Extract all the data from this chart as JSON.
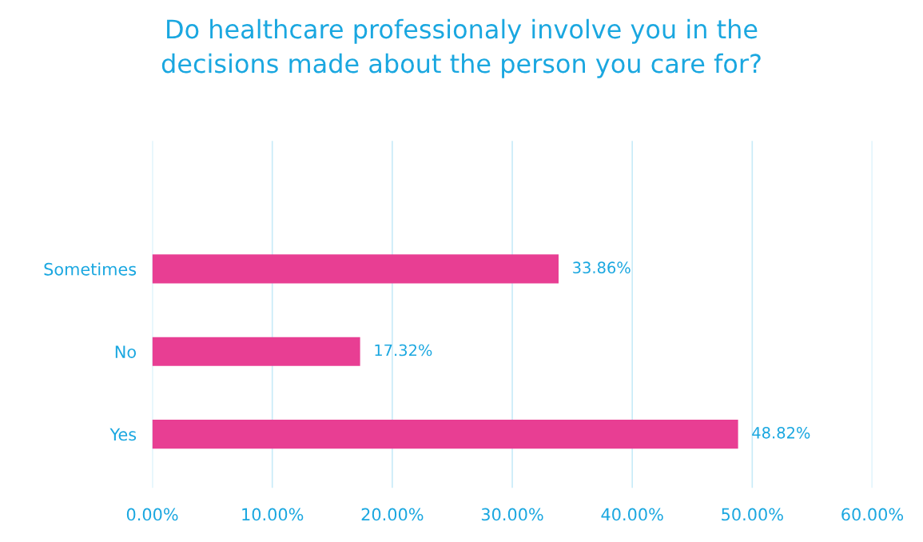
{
  "chart_data": {
    "type": "bar",
    "orientation": "horizontal",
    "title": "Do healthcare professionaly involve you in the\ndecisions made about the person you care for?",
    "categories": [
      "Sometimes",
      "No",
      "Yes"
    ],
    "values": [
      33.86,
      17.32,
      48.82
    ],
    "value_labels": [
      "33.86%",
      "17.32%",
      "48.82%"
    ],
    "color": "#e83e93",
    "xlim": [
      0,
      60
    ],
    "xticks": [
      {
        "value": 0,
        "label": "0.00%"
      },
      {
        "value": 10,
        "label": "10.00%"
      },
      {
        "value": 20,
        "label": "20.00%"
      },
      {
        "value": 30,
        "label": "30.00%"
      },
      {
        "value": 40,
        "label": "40.00%"
      },
      {
        "value": 50,
        "label": "50.00%"
      },
      {
        "value": 60,
        "label": "60.00%"
      }
    ],
    "grid": "x"
  }
}
